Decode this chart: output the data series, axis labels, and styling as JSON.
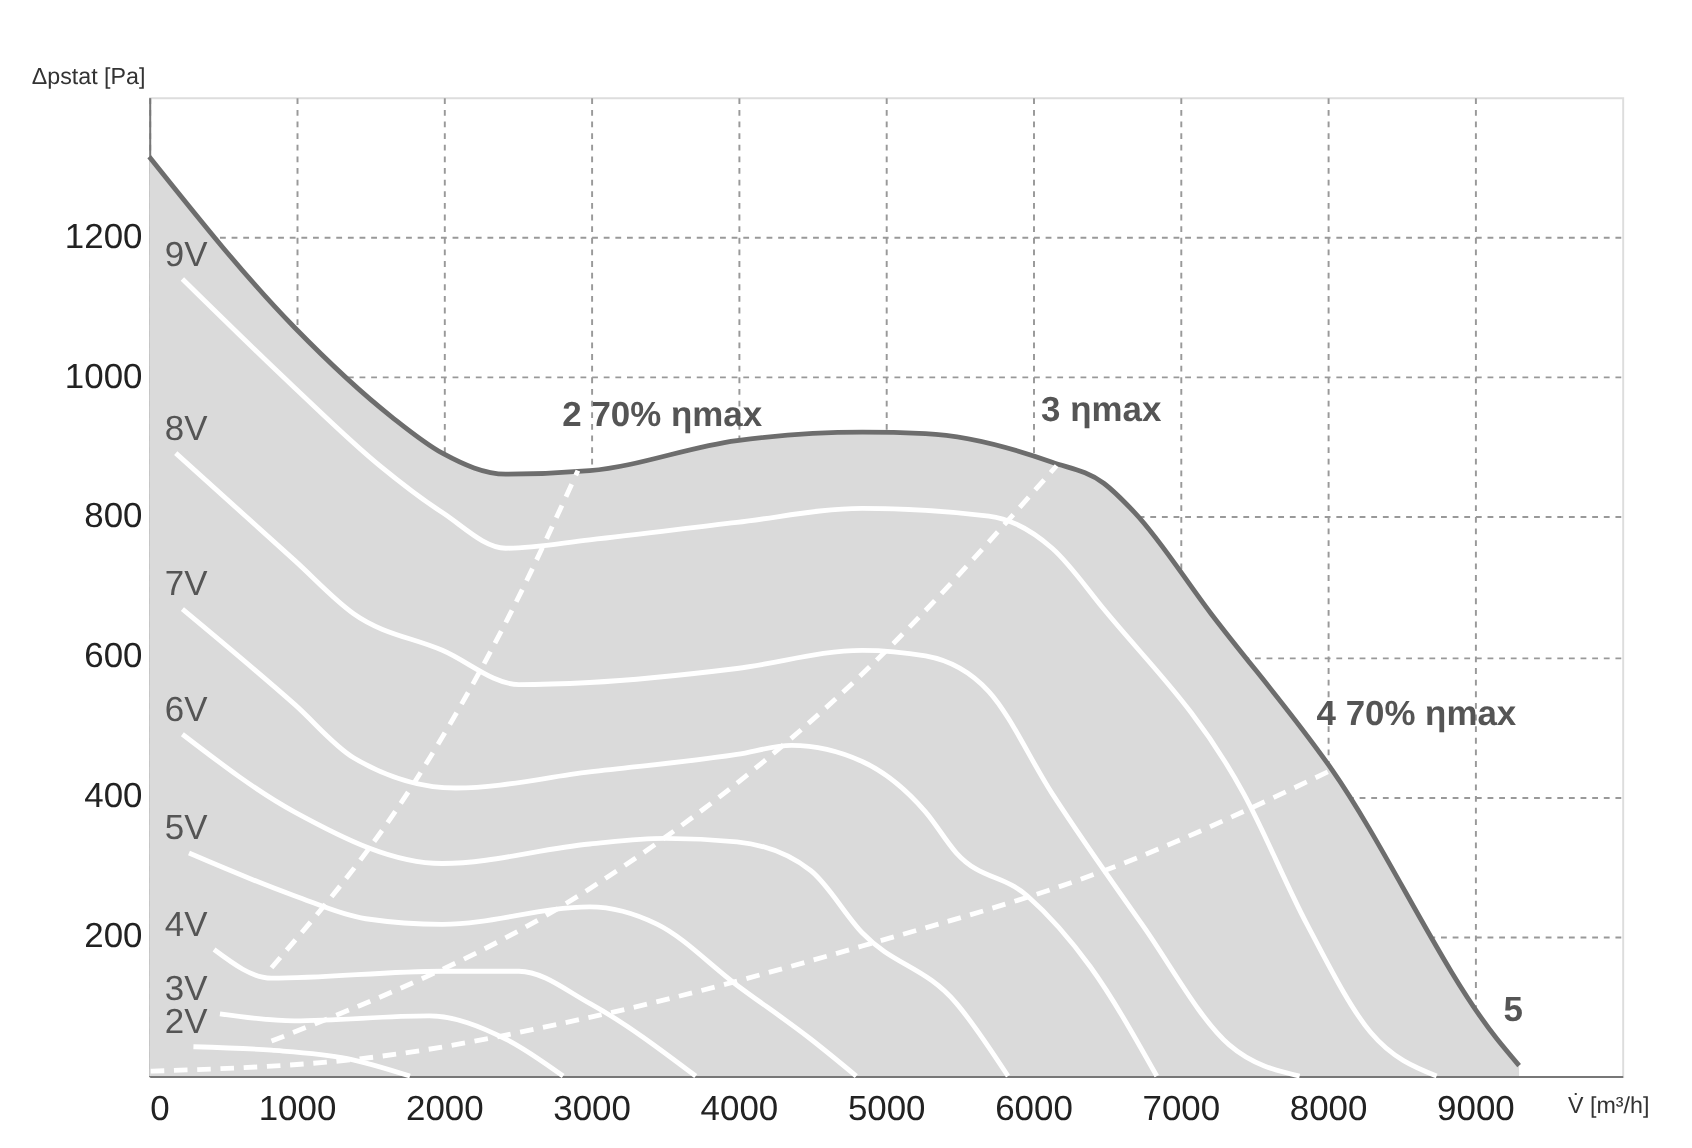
{
  "chart_data": {
    "type": "line",
    "xlabel": "V̇ [m³/h]",
    "ylabel": "Δpstat [Pa]",
    "xlim": [
      0,
      10000
    ],
    "ylim": [
      0,
      1400
    ],
    "xticks": [
      0,
      1000,
      2000,
      3000,
      4000,
      5000,
      6000,
      7000,
      8000,
      9000
    ],
    "yticks": [
      200,
      400,
      600,
      800,
      1000,
      1200
    ],
    "grid": true,
    "legend": "left",
    "series": [
      {
        "type": "area",
        "color": "#dadada",
        "x": [
          0,
          985,
          1645,
          1990,
          2420,
          2990,
          3990,
          4840,
          5270,
          6130,
          6480,
          6690,
          7210,
          8030,
          9150,
          9300
        ],
        "values": [
          1315,
          1071,
          943,
          891,
          861,
          866,
          909,
          921,
          919,
          878,
          848,
          806,
          661,
          438,
          53,
          15
        ]
      },
      {
        "name": "9V",
        "color": "#ffffff",
        "x": [
          225,
          985,
          1560,
          1990,
          2420,
          2990,
          3990,
          4840,
          5700,
          6130,
          6480,
          7430,
          7860,
          8290,
          8740
        ],
        "values": [
          1140,
          985,
          874,
          806,
          755,
          767,
          792,
          812,
          801,
          755,
          668,
          404,
          217,
          63,
          0
        ]
      },
      {
        "name": "8V",
        "color": "#ffffff",
        "x": [
          180,
          985,
          1390,
          1990,
          2510,
          2990,
          3990,
          4840,
          5270,
          5700,
          6130,
          6740,
          7330,
          7810
        ],
        "values": [
          891,
          738,
          661,
          609,
          560,
          563,
          583,
          609,
          601,
          550,
          404,
          217,
          45,
          0
        ]
      },
      {
        "name": "7V",
        "color": "#ffffff",
        "x": [
          225,
          985,
          1390,
          2080,
          2990,
          3990,
          4360,
          4840,
          5270,
          5480,
          5960,
          6390,
          6840
        ],
        "values": [
          668,
          532,
          455,
          412,
          435,
          460,
          473,
          450,
          378,
          319,
          258,
          156,
          0
        ]
      },
      {
        "name": "6V",
        "color": "#ffffff",
        "x": [
          225,
          985,
          1990,
          2990,
          3500,
          3990,
          4490,
          4840,
          5480,
          5830
        ],
        "values": [
          489,
          378,
          304,
          332,
          340,
          335,
          294,
          205,
          104,
          0
        ]
      },
      {
        "name": "5V",
        "color": "#ffffff",
        "x": [
          270,
          985,
          1470,
          1990,
          2990,
          3450,
          3990,
          4490,
          4800
        ],
        "values": [
          319,
          258,
          225,
          217,
          242,
          217,
          130,
          53,
          0
        ]
      },
      {
        "name": "4V",
        "color": "#ffffff",
        "x": [
          440,
          830,
          1990,
          2510,
          2990,
          3710
        ],
        "values": [
          181,
          140,
          150,
          150,
          104,
          0
        ]
      },
      {
        "name": "3V",
        "color": "#ffffff",
        "x": [
          480,
          985,
          1900,
          2420,
          2810
        ],
        "values": [
          89,
          79,
          86,
          53,
          0
        ]
      },
      {
        "name": "2V",
        "color": "#ffffff",
        "x": [
          300,
          830,
          1345,
          1770
        ],
        "values": [
          42,
          37,
          25,
          0
        ]
      },
      {
        "line_style": "dashed",
        "color": "#ffffff",
        "x": [
          830,
          1800,
          2450,
          2910
        ],
        "values": [
          155,
          420,
          661,
          866
        ]
      },
      {
        "line_style": "dashed",
        "color": "#ffffff",
        "x": [
          830,
          2990,
          4840,
          6160
        ],
        "values": [
          50,
          268,
          575,
          873
        ]
      },
      {
        "line_style": "dashed",
        "color": "#ffffff",
        "x": [
          10,
          1560,
          2990,
          4840,
          6560,
          8030
        ],
        "values": [
          7,
          28,
          84,
          186,
          300,
          438
        ]
      }
    ],
    "annotations": [
      {
        "text": "2 70% ηmax",
        "x": 2910,
        "y": 866
      },
      {
        "text": "3 ηmax",
        "x": 6160,
        "y": 873
      },
      {
        "text": "4 70% ηmax",
        "x": 8030,
        "y": 438
      },
      {
        "text": "5",
        "x": 9300,
        "y": 15
      }
    ]
  }
}
